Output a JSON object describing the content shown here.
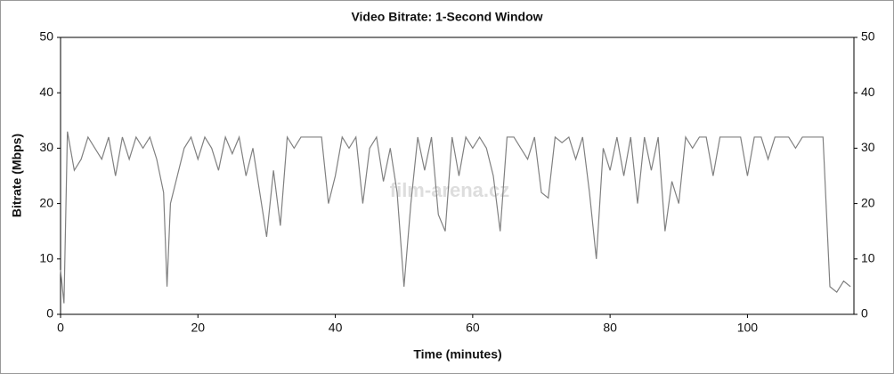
{
  "chart_data": {
    "type": "line",
    "title": "Video Bitrate: 1-Second Window",
    "x_label": "Time (minutes)",
    "y_label": "Bitrate (Mbps)",
    "watermark": "film-arena.cz",
    "x": [
      0,
      0.5,
      1,
      2,
      3,
      4,
      5,
      6,
      7,
      8,
      9,
      10,
      11,
      12,
      13,
      14,
      15,
      15.5,
      16,
      17,
      18,
      19,
      20,
      21,
      22,
      23,
      24,
      25,
      26,
      27,
      28,
      29,
      30,
      31,
      32,
      33,
      34,
      35,
      36,
      37,
      38,
      39,
      40,
      41,
      42,
      43,
      44,
      45,
      46,
      47,
      48,
      49,
      50,
      51,
      52,
      53,
      54,
      55,
      56,
      57,
      58,
      59,
      60,
      61,
      62,
      63,
      64,
      65,
      66,
      67,
      68,
      69,
      70,
      71,
      72,
      73,
      74,
      75,
      76,
      77,
      78,
      79,
      80,
      81,
      82,
      83,
      84,
      85,
      86,
      87,
      88,
      89,
      90,
      91,
      92,
      93,
      94,
      95,
      96,
      97,
      98,
      99,
      100,
      101,
      102,
      103,
      104,
      105,
      106,
      107,
      108,
      109,
      110,
      111,
      112,
      113,
      114,
      115
    ],
    "series": [
      {
        "name": "Bitrate",
        "color": "#808080",
        "values": [
          8,
          2,
          33,
          26,
          28,
          32,
          30,
          28,
          32,
          25,
          32,
          28,
          32,
          30,
          32,
          28,
          22,
          5,
          20,
          25,
          30,
          32,
          28,
          32,
          30,
          26,
          32,
          29,
          32,
          25,
          30,
          22,
          14,
          26,
          16,
          32,
          30,
          32,
          32,
          32,
          32,
          20,
          25,
          32,
          30,
          32,
          20,
          30,
          32,
          24,
          30,
          22,
          5,
          20,
          32,
          26,
          32,
          18,
          15,
          32,
          25,
          32,
          30,
          32,
          30,
          25,
          15,
          32,
          32,
          30,
          28,
          32,
          22,
          21,
          32,
          31,
          32,
          28,
          32,
          22,
          10,
          30,
          26,
          32,
          25,
          32,
          20,
          32,
          26,
          32,
          15,
          24,
          20,
          32,
          30,
          32,
          32,
          25,
          32,
          32,
          32,
          32,
          25,
          32,
          32,
          28,
          32,
          32,
          32,
          30,
          32,
          32,
          32,
          32,
          5,
          4,
          6,
          5
        ]
      }
    ],
    "xlim": [
      0,
      115.5
    ],
    "xticks": [
      0,
      20,
      40,
      60,
      80,
      100
    ],
    "ylim": [
      0,
      50
    ],
    "yticks": [
      0,
      10,
      20,
      30,
      40,
      50
    ],
    "y2lim": [
      0,
      50
    ],
    "y2ticks": [
      0,
      10,
      20,
      30,
      40,
      50
    ]
  }
}
